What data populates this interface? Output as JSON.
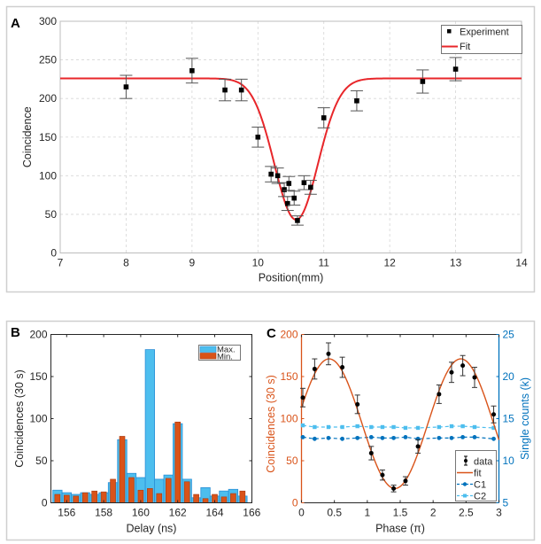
{
  "figure": {
    "panels": [
      "A",
      "B",
      "C"
    ]
  },
  "chart_data": [
    {
      "panel": "A",
      "type": "scatter",
      "title": "",
      "xlabel": "Position(mm)",
      "ylabel": "Coincidence",
      "xlim": [
        7,
        14
      ],
      "ylim": [
        0,
        300
      ],
      "xticks": [
        7,
        8,
        9,
        10,
        11,
        12,
        13,
        14
      ],
      "yticks": [
        0,
        50,
        100,
        150,
        200,
        250,
        300
      ],
      "grid": true,
      "legend": {
        "placement": "top-right",
        "entries": [
          "Experiment",
          "Fit"
        ]
      },
      "colors": {
        "experiment": "#000000",
        "fit": "#e8262a"
      },
      "series": [
        {
          "name": "Experiment",
          "kind": "points-with-errorbars",
          "x": [
            8,
            9,
            9.5,
            9.75,
            10,
            10.2,
            10.3,
            10.4,
            10.45,
            10.47,
            10.55,
            10.6,
            10.7,
            10.8,
            11,
            11.5,
            12.5,
            13
          ],
          "y": [
            215,
            236,
            211,
            211,
            150,
            102,
            100,
            82,
            64,
            90,
            71,
            42,
            91,
            85,
            175,
            197,
            222,
            238
          ],
          "err": [
            15,
            16,
            14,
            14,
            13,
            10,
            10,
            9,
            9,
            9,
            9,
            6,
            9,
            9,
            13,
            13,
            15,
            15
          ]
        },
        {
          "name": "Fit",
          "kind": "gaussian-dip",
          "baseline": 226,
          "depth": 183,
          "center": 10.58,
          "sigma": 0.33
        }
      ]
    },
    {
      "panel": "B",
      "type": "bar",
      "title": "",
      "xlabel": "Delay (ns)",
      "ylabel": "Coincidences (30 s)",
      "xlim": [
        155.15,
        166
      ],
      "ylim": [
        0,
        200
      ],
      "xticks": [
        156,
        158,
        160,
        162,
        164,
        166
      ],
      "yticks": [
        0,
        50,
        100,
        150,
        200
      ],
      "grid": false,
      "legend": {
        "placement": "top-right",
        "entries": [
          "Max.",
          "Min."
        ]
      },
      "colors": {
        "Max.": "#4dbeee",
        "Max_edge": "#2b8fd6",
        "Min.": "#d95319",
        "Min_edge": "#a83a10"
      },
      "categories": [
        155.5,
        156,
        156.5,
        157,
        157.5,
        158,
        158.5,
        159,
        159.5,
        160,
        160.5,
        161,
        161.5,
        162,
        162.5,
        163,
        163.5,
        164,
        164.5,
        165,
        165.5
      ],
      "series": [
        {
          "name": "Max.",
          "values": [
            15,
            12,
            10,
            12,
            10,
            12,
            24,
            75,
            35,
            30,
            182,
            28,
            33,
            94,
            28,
            6,
            18,
            8,
            14,
            16,
            8
          ]
        },
        {
          "name": "Min.",
          "values": [
            10,
            9,
            8,
            12,
            14,
            13,
            28,
            79,
            30,
            15,
            17,
            11,
            29,
            96,
            25,
            10,
            5,
            10,
            7,
            11,
            14
          ]
        }
      ]
    },
    {
      "panel": "C",
      "type": "line",
      "title": "",
      "xlabel": "Phase (π)",
      "ylabel": "Coincidences (30 s)",
      "ylabel_right": "Single counts (k)",
      "xlim": [
        0,
        3
      ],
      "ylim": [
        0,
        200
      ],
      "ylim_right": [
        5,
        25
      ],
      "xticks": [
        0,
        0.5,
        1,
        1.5,
        2,
        2.5,
        3
      ],
      "xtick_labels": [
        "0",
        "0.5",
        "1",
        "1.5",
        "2",
        "2.5",
        "3"
      ],
      "yticks": [
        0,
        50,
        100,
        150,
        200
      ],
      "yticks_right": [
        5,
        10,
        15,
        20,
        25
      ],
      "grid": false,
      "legend": {
        "placement": "bottom-right",
        "entries": [
          "data",
          "fit",
          "C1",
          "C2"
        ]
      },
      "colors": {
        "left_axis": "#d95319",
        "right_axis": "#0072bd",
        "data": "#000000",
        "fit": "#d95319",
        "C1": "#0072bd",
        "C2": "#4dbeee"
      },
      "x": [
        0.02,
        0.2,
        0.41,
        0.62,
        0.85,
        1.06,
        1.23,
        1.4,
        1.58,
        1.77,
        2.09,
        2.28,
        2.45,
        2.63,
        2.92
      ],
      "series": [
        {
          "name": "data",
          "axis": "left",
          "y": [
            125,
            159,
            177,
            161,
            117,
            59,
            33,
            17,
            26,
            67,
            129,
            155,
            163,
            149,
            105
          ],
          "err": [
            11,
            12,
            13,
            12,
            11,
            8,
            6,
            4,
            5,
            8,
            11,
            12,
            12,
            12,
            10
          ]
        },
        {
          "name": "fit",
          "axis": "left",
          "kind": "cosine",
          "offset": 94,
          "amplitude": 77,
          "phase_of_max": 0.42,
          "period": 2
        },
        {
          "name": "C1",
          "axis": "right",
          "y": [
            12.8,
            12.6,
            12.7,
            12.6,
            12.7,
            12.8,
            12.7,
            12.7,
            12.8,
            12.6,
            12.7,
            12.7,
            12.8,
            12.8,
            12.6
          ]
        },
        {
          "name": "C2",
          "axis": "right",
          "y": [
            14.2,
            14.0,
            14.0,
            14.0,
            14.1,
            14.0,
            14.0,
            14.0,
            13.9,
            13.9,
            14.0,
            14.1,
            14.1,
            14.0,
            13.9
          ]
        }
      ]
    }
  ]
}
